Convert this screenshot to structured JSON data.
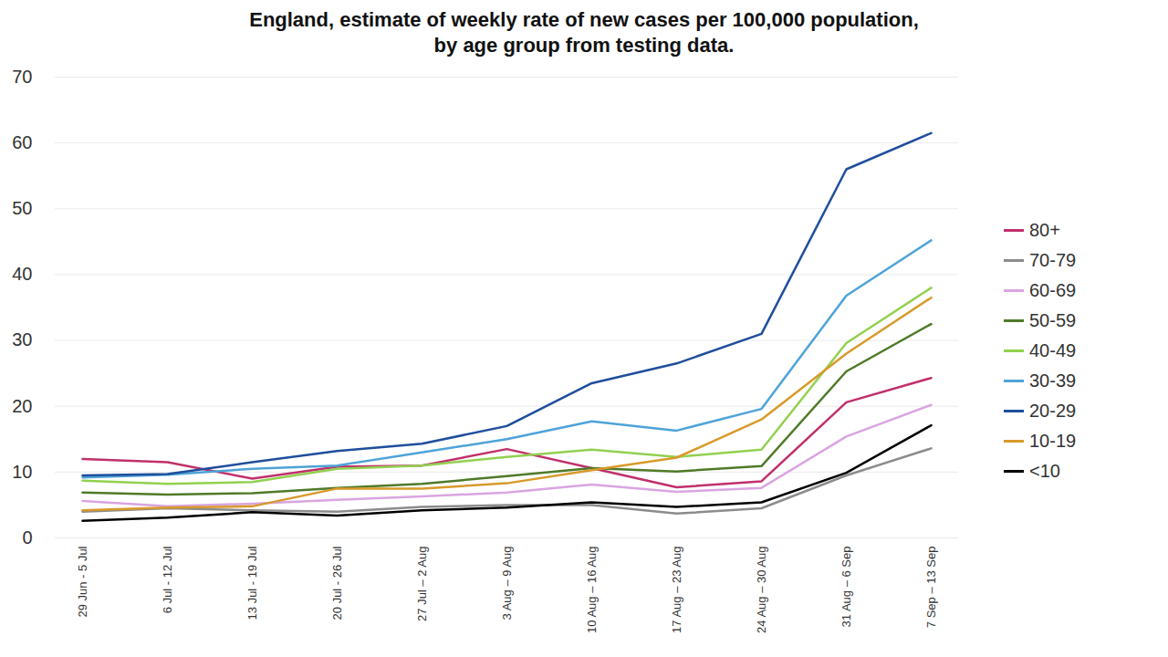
{
  "chart_data": {
    "type": "line",
    "title": [
      "England, estimate of weekly rate of new cases per 100,000 population,",
      "by age group from testing data."
    ],
    "x": [
      "29 Jun - 5 Jul",
      "6 Jul - 12 Jul",
      "13 Jul - 19 Jul",
      "20 Jul - 26 Jul",
      "27 Jul – 2 Aug",
      "3 Aug – 9 Aug",
      "10 Aug – 16 Aug",
      "17 Aug – 23 Aug",
      "24 Aug – 30 Aug",
      "31 Aug – 6 Sep",
      "7 Sep – 13 Sep"
    ],
    "series": [
      {
        "name": "80+",
        "color": "#c0306b",
        "values": [
          12,
          11.5,
          9,
          10.8,
          11,
          13.5,
          10.6,
          7.7,
          8.6,
          20.6,
          24.3
        ]
      },
      {
        "name": "70-79",
        "color": "#8c8c8c",
        "values": [
          4,
          4.5,
          4.2,
          4,
          4.7,
          5,
          5,
          3.7,
          4.5,
          9.5,
          13.6
        ]
      },
      {
        "name": "60-69",
        "color": "#d9a5e0",
        "values": [
          5.6,
          4.8,
          5.2,
          5.8,
          6.3,
          6.9,
          8.1,
          7,
          7.6,
          15.4,
          20.2
        ]
      },
      {
        "name": "50-59",
        "color": "#4f7a28",
        "values": [
          6.9,
          6.6,
          6.8,
          7.6,
          8.2,
          9.4,
          10.6,
          10.1,
          10.9,
          25.3,
          32.5
        ]
      },
      {
        "name": "40-49",
        "color": "#92d050",
        "values": [
          8.7,
          8.2,
          8.5,
          10.5,
          11,
          12.3,
          13.4,
          12.3,
          13.4,
          29.6,
          38
        ]
      },
      {
        "name": "30-39",
        "color": "#4ea3d8",
        "values": [
          9.2,
          9.6,
          10.5,
          11,
          13,
          15,
          17.7,
          16.3,
          19.6,
          36.8,
          45.2
        ]
      },
      {
        "name": "20-29",
        "color": "#1f4e9c",
        "values": [
          9.5,
          9.7,
          11.5,
          13.2,
          14.3,
          17,
          23.5,
          26.5,
          31,
          56,
          61.5
        ]
      },
      {
        "name": "10-19",
        "color": "#d89a2a",
        "values": [
          4.2,
          4.6,
          4.8,
          7.5,
          7.5,
          8.3,
          10.3,
          12.2,
          18,
          28,
          36.5
        ]
      },
      {
        "name": "<10",
        "color": "#000000",
        "values": [
          2.6,
          3.1,
          3.9,
          3.4,
          4.2,
          4.6,
          5.4,
          4.7,
          5.4,
          9.9,
          17.1
        ]
      }
    ],
    "ylim": [
      0,
      70
    ],
    "yticks": [
      0,
      10,
      20,
      30,
      40,
      50,
      60,
      70
    ],
    "grid": true,
    "legend": "right"
  }
}
